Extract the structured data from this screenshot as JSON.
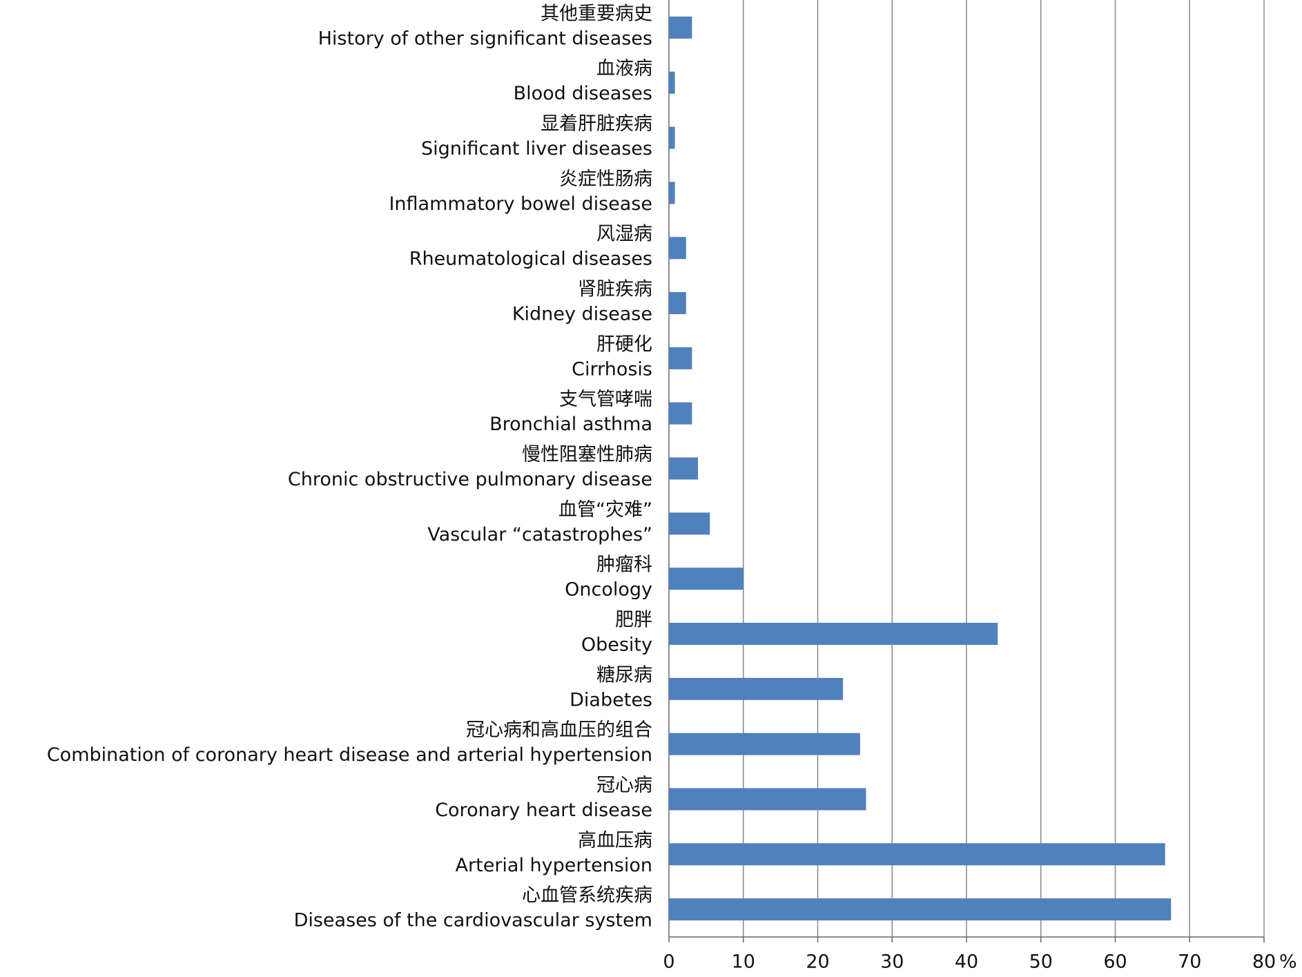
{
  "chart_data": {
    "type": "barh",
    "categories": [
      [
        "其他重要病史",
        "History of other significant diseases"
      ],
      [
        "血液病",
        "Blood diseases"
      ],
      [
        "显着肝脏疾病",
        "Significant liver diseases"
      ],
      [
        "炎症性肠病",
        "Inflammatory bowel disease"
      ],
      [
        "风湿病",
        "Rheumatological diseases"
      ],
      [
        "肾脏疾病",
        "Kidney disease"
      ],
      [
        "肝硬化",
        "Cirrhosis"
      ],
      [
        "支气管哮喘",
        "Bronchial asthma"
      ],
      [
        "慢性阻塞性肺病",
        "Chronic obstructive pulmonary disease"
      ],
      [
        "血管“灾难”",
        "Vascular “catastrophes”"
      ],
      [
        "肿瘤科",
        "Oncology"
      ],
      [
        "肥胖",
        "Obesity"
      ],
      [
        "糖尿病",
        "Diabetes"
      ],
      [
        "冠心病和高血压的组合",
        "Combination of coronary heart disease and arterial hypertension"
      ],
      [
        "冠心病",
        "Coronary heart disease"
      ],
      [
        "高血压病",
        "Arterial hypertension"
      ],
      [
        "心血管系统疾病",
        "Diseases of the cardiovascular system"
      ]
    ],
    "values": [
      3.1,
      0.8,
      0.8,
      0.8,
      2.3,
      2.3,
      3.1,
      3.1,
      3.9,
      5.5,
      10,
      44.2,
      23.4,
      25.7,
      26.5,
      66.7,
      67.5
    ],
    "color": "#4f81bd",
    "xlim": [
      0,
      80
    ],
    "xticks": [
      0,
      10,
      20,
      30,
      40,
      50,
      60,
      70,
      80
    ],
    "x_unit": "%",
    "grid": true
  }
}
